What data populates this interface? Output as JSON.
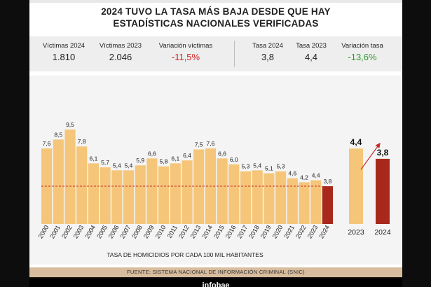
{
  "title_line1": "2024 TUVO LA TASA MÁS BAJA DESDE QUE HAY",
  "title_line2": "ESTADÍSTICAS NACIONALES VERIFICADAS",
  "stats": [
    {
      "label": "Víctimas 2024",
      "value": "1.810",
      "tone": "normal"
    },
    {
      "label": "Víctimas 2023",
      "value": "2.046",
      "tone": "normal"
    },
    {
      "label": "Variación víctimas",
      "value": "-11,5%",
      "tone": "neg"
    },
    {
      "label": "Tasa 2024",
      "value": "3,8",
      "tone": "normal"
    },
    {
      "label": "Tasa 2023",
      "value": "4,4",
      "tone": "normal"
    },
    {
      "label": "Variación tasa",
      "value": "-13,6%",
      "tone": "pos"
    }
  ],
  "colors": {
    "bar": "#f5c679",
    "highlight": "#a8291b",
    "line": "#c62828"
  },
  "chart_data": [
    {
      "type": "bar",
      "categories": [
        "2000",
        "2001",
        "2002",
        "2003",
        "2004",
        "2005",
        "2006",
        "2007",
        "2008",
        "2009",
        "2010",
        "2011",
        "2012",
        "2013",
        "2014",
        "2015",
        "2016",
        "2017",
        "2018",
        "2019",
        "2020",
        "2021",
        "2022",
        "2023",
        "2024"
      ],
      "values": [
        7.6,
        8.5,
        9.5,
        7.8,
        6.1,
        5.7,
        5.4,
        5.4,
        5.9,
        6.6,
        5.8,
        6.1,
        6.4,
        7.5,
        7.6,
        6.6,
        6.0,
        5.3,
        5.4,
        5.1,
        5.3,
        4.6,
        4.2,
        4.4,
        3.8
      ],
      "value_labels": [
        "7,6",
        "8,5",
        "9,5",
        "7,8",
        "6,1",
        "5,7",
        "5,4",
        "5,4",
        "5,9",
        "6,6",
        "5,8",
        "6,1",
        "6,4",
        "7,5",
        "7,6",
        "6,6",
        "6,0",
        "5,3",
        "5,4",
        "5,1",
        "5,3",
        "4,6",
        "4,2",
        "4,4",
        "3,8"
      ],
      "xlabel": "TASA DE HOMICIDIOS POR CADA 100 MIL HABITANTES",
      "highlight": "2024",
      "reference_line": 3.8
    },
    {
      "type": "bar",
      "categories": [
        "2023",
        "2024"
      ],
      "values": [
        4.4,
        3.8
      ],
      "value_labels": [
        "4,4",
        "3,8"
      ]
    }
  ],
  "source": "FUENTE: SISTEMA NACIONAL DE INFORMACIÓN CRIMINAL (SNIC)",
  "brand": "infobae"
}
